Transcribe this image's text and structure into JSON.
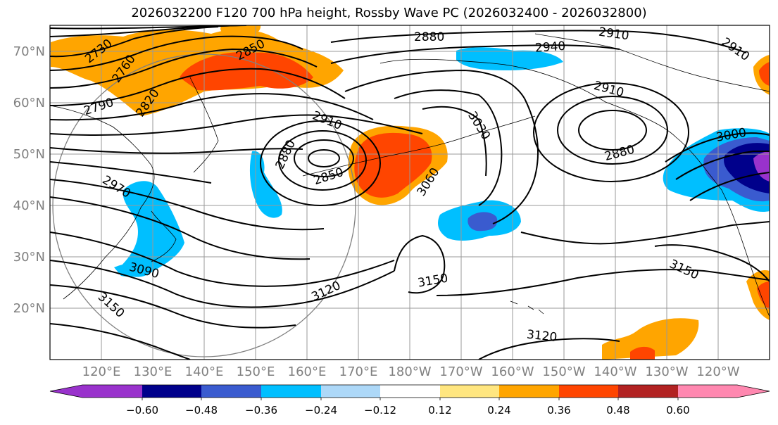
{
  "title": "2026032200 F120 700 hPa height, Rossby Wave PC (2026032400 - 2026032800)",
  "map": {
    "lat_ticks": [
      "70°N",
      "60°N",
      "50°N",
      "40°N",
      "30°N",
      "20°N"
    ],
    "lon_ticks": [
      "120°E",
      "130°E",
      "140°E",
      "150°E",
      "160°E",
      "170°E",
      "180°W",
      "170°W",
      "160°W",
      "150°W",
      "140°W",
      "130°W",
      "120°W"
    ],
    "contour_labels": [
      "2730",
      "2760",
      "2790",
      "2820",
      "2850",
      "2880",
      "2910",
      "2940",
      "2910",
      "2910",
      "2880",
      "2850",
      "2880",
      "3030",
      "3060",
      "3000",
      "2970",
      "3090",
      "3120",
      "3150",
      "3150",
      "3150",
      "3120",
      "2910"
    ]
  },
  "colorbar": {
    "ticks": [
      "−0.60",
      "−0.48",
      "−0.36",
      "−0.24",
      "−0.12",
      "0.12",
      "0.24",
      "0.36",
      "0.48",
      "0.60"
    ],
    "colors": [
      "#9932cc",
      "#00008b",
      "#3a5bcf",
      "#00bfff",
      "#add8f8",
      "#ffffff",
      "#ffe680",
      "#ffa500",
      "#ff4500",
      "#b22222",
      "#ff88b0",
      "#ff88b0"
    ]
  }
}
